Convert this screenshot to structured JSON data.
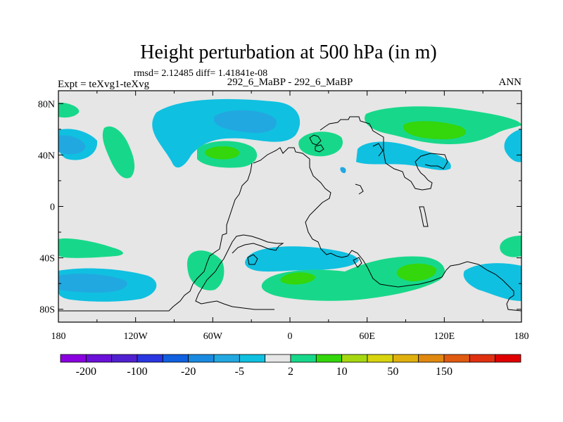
{
  "chart_data": {
    "type": "contour-map",
    "title": "Height perturbation at 500 hPa (in m)",
    "stats_line": "rmsd= 2.12485 diff= 1.41841e-08",
    "left_label": "Expt = teXvg1-teXvg",
    "center_label": "292_6_MaBP - 292_6_MaBP",
    "right_label": "ANN",
    "x_ticks": [
      {
        "lon": -180,
        "label": "180"
      },
      {
        "lon": -120,
        "label": "120W"
      },
      {
        "lon": -60,
        "label": "60W"
      },
      {
        "lon": 0,
        "label": "0"
      },
      {
        "lon": 60,
        "label": "60E"
      },
      {
        "lon": 120,
        "label": "120E"
      },
      {
        "lon": 180,
        "label": "180"
      }
    ],
    "y_ticks": [
      {
        "lat": 80,
        "label": "80N"
      },
      {
        "lat": 40,
        "label": "40N"
      },
      {
        "lat": 0,
        "label": "0"
      },
      {
        "lat": -40,
        "label": "40S"
      },
      {
        "lat": -80,
        "label": "80S"
      }
    ],
    "xlim": [
      -180,
      180
    ],
    "ylim": [
      -90,
      90
    ],
    "colorbar": {
      "colors": [
        "#8a00e0",
        "#6a10d8",
        "#5020d0",
        "#2a36e0",
        "#1060e0",
        "#1a8ae0",
        "#22a8e0",
        "#10c0e0",
        "#e6e6e6",
        "#17d88a",
        "#34d60c",
        "#a6d810",
        "#d8d40e",
        "#e0b00e",
        "#e08810",
        "#e05a10",
        "#e03010",
        "#e00000"
      ],
      "labels": [
        "-200",
        "-100",
        "-20",
        "-5",
        "2",
        "10",
        "50",
        "150"
      ]
    },
    "colors": {
      "neutral": "#e6e6e6",
      "light_blue": "#10c0e0",
      "mid_blue": "#22a8e0",
      "green": "#17d88a",
      "bright_green": "#34d60c"
    },
    "regions": [
      {
        "name": "north-pacific-negative",
        "level": -5,
        "color": "#10c0e0"
      },
      {
        "name": "north-pacific-core",
        "level": -10,
        "color": "#22a8e0"
      },
      {
        "name": "eurasia-positive",
        "level": 2,
        "color": "#17d88a"
      },
      {
        "name": "eurasia-core",
        "level": 5,
        "color": "#34d60c"
      },
      {
        "name": "southern-ocean-positive",
        "level": 2,
        "color": "#17d88a"
      },
      {
        "name": "southern-ocean-negative",
        "level": -5,
        "color": "#10c0e0"
      }
    ]
  }
}
